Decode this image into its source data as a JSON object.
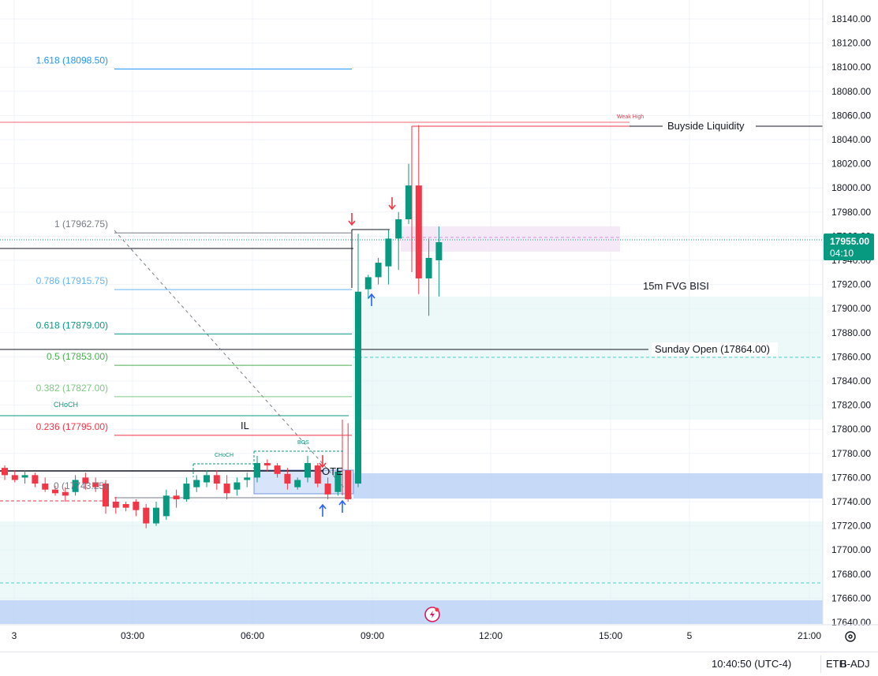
{
  "chart_data": {
    "type": "candlestick",
    "y_ticks": [
      17640,
      17660,
      17680,
      17700,
      17720,
      17740,
      17760,
      17780,
      17800,
      17820,
      17840,
      17860,
      17880,
      17900,
      17920,
      17940,
      17960,
      17980,
      18000,
      18020,
      18040,
      18060,
      18080,
      18100,
      18120,
      18140
    ],
    "ylim": [
      17628,
      18152
    ],
    "x_ticks": [
      "3",
      "03:00",
      "06:00",
      "09:00",
      "12:00",
      "15:00",
      "5",
      "21:00"
    ],
    "grid": true,
    "last_price": "17955.00",
    "countdown": "04:10",
    "candles": [
      {
        "o": 17768,
        "h": 17770,
        "l": 17758,
        "c": 17762
      },
      {
        "o": 17762,
        "h": 17766,
        "l": 17756,
        "c": 17758
      },
      {
        "o": 17760,
        "h": 17766,
        "l": 17755,
        "c": 17762
      },
      {
        "o": 17762,
        "h": 17764,
        "l": 17752,
        "c": 17755
      },
      {
        "o": 17755,
        "h": 17760,
        "l": 17748,
        "c": 17750
      },
      {
        "o": 17750,
        "h": 17753,
        "l": 17745,
        "c": 17747
      },
      {
        "o": 17748,
        "h": 17752,
        "l": 17740,
        "c": 17745
      },
      {
        "o": 17748,
        "h": 17762,
        "l": 17745,
        "c": 17758
      },
      {
        "o": 17760,
        "h": 17764,
        "l": 17750,
        "c": 17755
      },
      {
        "o": 17756,
        "h": 17760,
        "l": 17748,
        "c": 17752
      },
      {
        "o": 17755,
        "h": 17758,
        "l": 17730,
        "c": 17736
      },
      {
        "o": 17740,
        "h": 17744,
        "l": 17730,
        "c": 17735
      },
      {
        "o": 17738,
        "h": 17740,
        "l": 17732,
        "c": 17735
      },
      {
        "o": 17740,
        "h": 17742,
        "l": 17728,
        "c": 17733
      },
      {
        "o": 17735,
        "h": 17738,
        "l": 17718,
        "c": 17722
      },
      {
        "o": 17722,
        "h": 17740,
        "l": 17720,
        "c": 17735
      },
      {
        "o": 17728,
        "h": 17750,
        "l": 17725,
        "c": 17745
      },
      {
        "o": 17745,
        "h": 17750,
        "l": 17735,
        "c": 17742
      },
      {
        "o": 17742,
        "h": 17760,
        "l": 17740,
        "c": 17755
      },
      {
        "o": 17752,
        "h": 17762,
        "l": 17748,
        "c": 17758
      },
      {
        "o": 17756,
        "h": 17766,
        "l": 17752,
        "c": 17762
      },
      {
        "o": 17762,
        "h": 17766,
        "l": 17750,
        "c": 17755
      },
      {
        "o": 17755,
        "h": 17762,
        "l": 17742,
        "c": 17747
      },
      {
        "o": 17750,
        "h": 17760,
        "l": 17745,
        "c": 17756
      },
      {
        "o": 17758,
        "h": 17764,
        "l": 17752,
        "c": 17760
      },
      {
        "o": 17760,
        "h": 17778,
        "l": 17756,
        "c": 17772
      },
      {
        "o": 17772,
        "h": 17775,
        "l": 17765,
        "c": 17770
      },
      {
        "o": 17770,
        "h": 17772,
        "l": 17760,
        "c": 17763
      },
      {
        "o": 17763,
        "h": 17768,
        "l": 17750,
        "c": 17755
      },
      {
        "o": 17752,
        "h": 17760,
        "l": 17750,
        "c": 17758
      },
      {
        "o": 17760,
        "h": 17778,
        "l": 17756,
        "c": 17772
      },
      {
        "o": 17770,
        "h": 17772,
        "l": 17752,
        "c": 17755
      },
      {
        "o": 17755,
        "h": 17760,
        "l": 17742,
        "c": 17746
      },
      {
        "o": 17748,
        "h": 17768,
        "l": 17745,
        "c": 17765
      },
      {
        "o": 17766,
        "h": 17805,
        "l": 17740,
        "c": 17742
      },
      {
        "o": 17755,
        "h": 17962,
        "l": 17752,
        "c": 17914
      },
      {
        "o": 17916,
        "h": 17928,
        "l": 17908,
        "c": 17926
      },
      {
        "o": 17926,
        "h": 17942,
        "l": 17920,
        "c": 17938
      },
      {
        "o": 17935,
        "h": 17965,
        "l": 17920,
        "c": 17958
      },
      {
        "o": 17958,
        "h": 17980,
        "l": 17932,
        "c": 17974
      },
      {
        "o": 17974,
        "h": 18020,
        "l": 17970,
        "c": 18002
      },
      {
        "o": 18002,
        "h": 18052,
        "l": 17912,
        "c": 17925
      },
      {
        "o": 17925,
        "h": 17958,
        "l": 17894,
        "c": 17942
      },
      {
        "o": 17940,
        "h": 17968,
        "l": 17910,
        "c": 17955
      }
    ],
    "fib_levels": [
      {
        "label": "1.618 (18098.50)",
        "price": 18098.5,
        "color": "#2196f3"
      },
      {
        "label": "1 (17962.75)",
        "price": 17962.75,
        "color": "#787b86"
      },
      {
        "label": "0.786 (17915.75)",
        "price": 17915.75,
        "color": "#64b5f6"
      },
      {
        "label": "0.618 (17879.00)",
        "price": 17879.0,
        "color": "#089981"
      },
      {
        "label": "0.5 (17853.00)",
        "price": 17853.0,
        "color": "#4caf50"
      },
      {
        "label": "0.382 (17827.00)",
        "price": 17827.0,
        "color": "#81c784"
      },
      {
        "label": "0.236 (17795.00)",
        "price": 17795.0,
        "color": "#f23645"
      }
    ],
    "fib_zero_label": "0 (17743.25)",
    "annotations": {
      "buyside": "Buyside Liquidity",
      "weak_high": "Weak High",
      "fvg": "15m FVG BISI",
      "sunday_open": "Sunday Open (17864.00)",
      "il": "IL",
      "choch_1": "CHoCH",
      "choch_2": "CHoCH",
      "bos": "BOS",
      "ote": "OTE"
    }
  },
  "status_bar": {
    "time": "10:40:50 (UTC-4)",
    "session": "ETH",
    "adjust": "B-ADJ"
  },
  "colors": {
    "up": "#089981",
    "down": "#f23645",
    "price_tag": "#089981"
  }
}
